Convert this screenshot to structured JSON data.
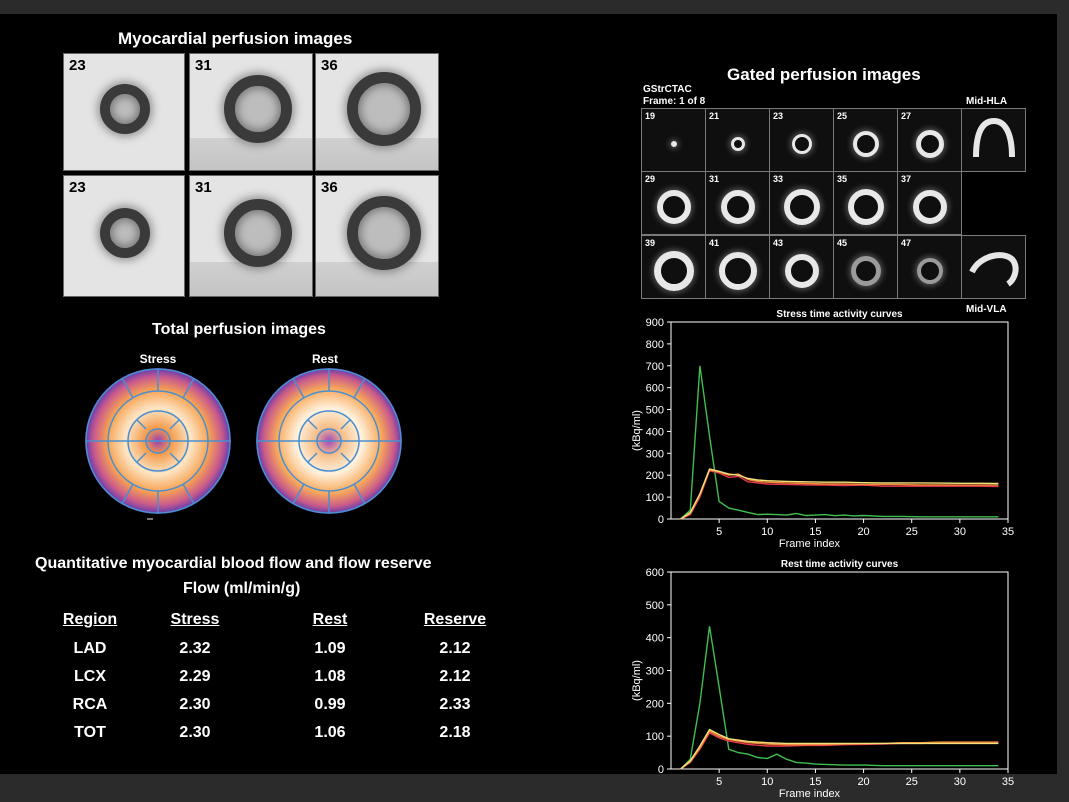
{
  "myocardial": {
    "title": "Myocardial perfusion images",
    "top_row": [
      "23",
      "31",
      "36"
    ],
    "bottom_row": [
      "23",
      "31",
      "36"
    ]
  },
  "total": {
    "title": "Total perfusion images",
    "stress_label": "Stress",
    "rest_label": "Rest"
  },
  "quant": {
    "title": "Quantitative myocardial blood flow and flow reserve",
    "subtitle": "Flow (ml/min/g)",
    "headers": [
      "Region",
      "Stress",
      "Rest",
      "Reserve"
    ],
    "rows": [
      [
        "LAD",
        "2.32",
        "1.09",
        "2.12"
      ],
      [
        "LCX",
        "2.29",
        "1.08",
        "2.12"
      ],
      [
        "RCA",
        "2.30",
        "0.99",
        "2.33"
      ],
      [
        "TOT",
        "2.30",
        "1.06",
        "2.18"
      ]
    ]
  },
  "gated": {
    "title": "Gated perfusion images",
    "label1": "GStrCTAC",
    "label2": "Frame: 1 of 8",
    "hla_label": "Mid-HLA",
    "vla_label": "Mid-VLA",
    "row1": [
      "19",
      "21",
      "23",
      "25",
      "27"
    ],
    "row2": [
      "29",
      "31",
      "33",
      "35",
      "37"
    ],
    "row3": [
      "39",
      "41",
      "43",
      "45",
      "47"
    ]
  },
  "chart_data": [
    {
      "type": "line",
      "title": "Stress time activity curves",
      "xlabel": "Frame index",
      "ylabel": "(kBq/ml)",
      "xlim": [
        0,
        35
      ],
      "ylim": [
        0,
        900
      ],
      "xticks": [
        5,
        10,
        15,
        20,
        25,
        30,
        35
      ],
      "yticks": [
        0,
        100,
        200,
        300,
        400,
        500,
        600,
        700,
        800,
        900
      ],
      "series": [
        {
          "name": "green",
          "color": "#3fbf4f",
          "x": [
            1,
            2,
            3,
            4,
            5,
            6,
            7,
            8,
            9,
            10,
            11,
            12,
            13,
            14,
            15,
            16,
            17,
            18,
            19,
            20,
            22,
            24,
            26,
            28,
            30,
            32,
            34
          ],
          "y": [
            0,
            40,
            700,
            380,
            80,
            50,
            40,
            30,
            20,
            22,
            20,
            18,
            25,
            16,
            18,
            20,
            15,
            18,
            14,
            16,
            12,
            12,
            10,
            10,
            10,
            10,
            10
          ]
        },
        {
          "name": "red",
          "color": "#e8384f",
          "x": [
            1,
            2,
            3,
            4,
            5,
            6,
            7,
            8,
            9,
            10,
            12,
            14,
            16,
            18,
            20,
            22,
            24,
            26,
            28,
            30,
            32,
            34
          ],
          "y": [
            0,
            20,
            100,
            220,
            210,
            190,
            195,
            170,
            165,
            160,
            158,
            156,
            155,
            153,
            155,
            150,
            150,
            150,
            150,
            150,
            150,
            148
          ]
        },
        {
          "name": "orange",
          "color": "#f08a3a",
          "x": [
            1,
            2,
            3,
            4,
            5,
            6,
            7,
            8,
            9,
            10,
            12,
            14,
            16,
            18,
            20,
            22,
            24,
            26,
            28,
            30,
            32,
            34
          ],
          "y": [
            0,
            25,
            110,
            225,
            215,
            200,
            205,
            180,
            172,
            168,
            165,
            162,
            160,
            160,
            158,
            158,
            157,
            156,
            156,
            155,
            155,
            155
          ]
        },
        {
          "name": "yellow",
          "color": "#f2e07a",
          "x": [
            1,
            2,
            3,
            4,
            5,
            6,
            7,
            8,
            9,
            10,
            12,
            14,
            16,
            18,
            20,
            22,
            24,
            26,
            28,
            30,
            32,
            34
          ],
          "y": [
            0,
            30,
            115,
            228,
            218,
            205,
            200,
            185,
            178,
            175,
            172,
            170,
            168,
            168,
            166,
            165,
            165,
            165,
            164,
            163,
            163,
            162
          ]
        }
      ]
    },
    {
      "type": "line",
      "title": "Rest time activity curves",
      "xlabel": "Frame index",
      "ylabel": "(kBq/ml)",
      "xlim": [
        0,
        35
      ],
      "ylim": [
        0,
        600
      ],
      "xticks": [
        5,
        10,
        15,
        20,
        25,
        30,
        35
      ],
      "yticks": [
        0,
        100,
        200,
        300,
        400,
        500,
        600
      ],
      "series": [
        {
          "name": "green",
          "color": "#3fbf4f",
          "x": [
            1,
            2,
            3,
            4,
            5,
            6,
            7,
            8,
            9,
            10,
            11,
            12,
            13,
            14,
            15,
            16,
            18,
            20,
            22,
            24,
            26,
            28,
            30,
            32,
            34
          ],
          "y": [
            0,
            30,
            200,
            435,
            250,
            60,
            50,
            45,
            35,
            32,
            45,
            30,
            20,
            18,
            15,
            14,
            12,
            12,
            10,
            10,
            10,
            10,
            10,
            10,
            10
          ]
        },
        {
          "name": "red",
          "color": "#e8384f",
          "x": [
            1,
            2,
            3,
            4,
            5,
            6,
            7,
            8,
            10,
            12,
            14,
            16,
            18,
            20,
            22,
            24,
            26,
            28,
            30,
            32,
            34
          ],
          "y": [
            0,
            20,
            60,
            110,
            95,
            85,
            80,
            75,
            70,
            70,
            72,
            72,
            74,
            75,
            76,
            78,
            78,
            80,
            80,
            80,
            80
          ]
        },
        {
          "name": "orange",
          "color": "#f08a3a",
          "x": [
            1,
            2,
            3,
            4,
            5,
            6,
            7,
            8,
            10,
            12,
            14,
            16,
            18,
            20,
            22,
            24,
            26,
            28,
            30,
            32,
            34
          ],
          "y": [
            0,
            22,
            65,
            115,
            100,
            90,
            85,
            80,
            76,
            74,
            74,
            75,
            76,
            77,
            78,
            80,
            80,
            82,
            82,
            82,
            82
          ]
        },
        {
          "name": "yellow",
          "color": "#f2e07a",
          "x": [
            1,
            2,
            3,
            4,
            5,
            6,
            7,
            8,
            10,
            12,
            14,
            16,
            18,
            20,
            22,
            24,
            26,
            28,
            30,
            32,
            34
          ],
          "y": [
            0,
            25,
            70,
            120,
            105,
            92,
            88,
            84,
            80,
            78,
            78,
            78,
            78,
            78,
            78,
            78,
            78,
            78,
            78,
            78,
            78
          ]
        }
      ]
    }
  ]
}
